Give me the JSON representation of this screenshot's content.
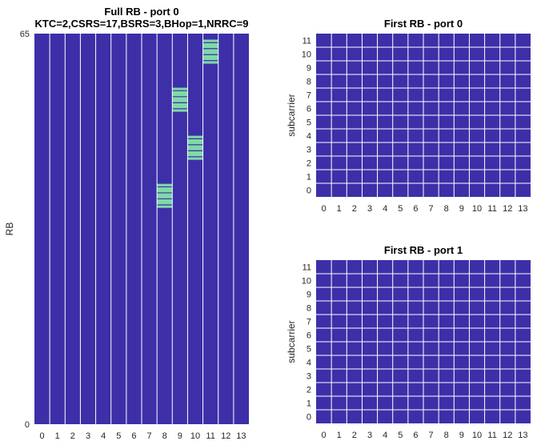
{
  "colors": {
    "background": "#3d2fa8",
    "highlight": "#7fd9a8",
    "gridline": "#ffffff"
  },
  "chart_data": [
    {
      "id": "full",
      "type": "heatmap",
      "title_lines": [
        "Full RB - port 0",
        "KTC=2,CSRS=17,BSRS=3,BHop=1,NRRC=9"
      ],
      "xlabel": "",
      "ylabel": "RB",
      "x_ticks": [
        "0",
        "1",
        "2",
        "3",
        "4",
        "5",
        "6",
        "7",
        "8",
        "9",
        "10",
        "11",
        "12",
        "13"
      ],
      "y_tick_labels": [
        "65",
        "0"
      ],
      "ylim": [
        0,
        65
      ],
      "symbols": 14,
      "grid": "vertical",
      "highlights": [
        {
          "symbol": 8,
          "rb_start": 36,
          "rb_end": 40
        },
        {
          "symbol": 9,
          "rb_start": 52,
          "rb_end": 56
        },
        {
          "symbol": 10,
          "rb_start": 44,
          "rb_end": 48
        },
        {
          "symbol": 11,
          "rb_start": 60,
          "rb_end": 64
        }
      ]
    },
    {
      "id": "port0",
      "type": "heatmap",
      "title_lines": [
        "First RB - port 0"
      ],
      "xlabel": "",
      "ylabel": "subcarrier",
      "x_ticks": [
        "0",
        "1",
        "2",
        "3",
        "4",
        "5",
        "6",
        "7",
        "8",
        "9",
        "10",
        "11",
        "12",
        "13"
      ],
      "y_ticks": [
        "0",
        "1",
        "2",
        "3",
        "4",
        "5",
        "6",
        "7",
        "8",
        "9",
        "10",
        "11"
      ],
      "grid": "both",
      "highlights": []
    },
    {
      "id": "port1",
      "type": "heatmap",
      "title_lines": [
        "First RB - port 1"
      ],
      "xlabel": "",
      "ylabel": "subcarrier",
      "x_ticks": [
        "0",
        "1",
        "2",
        "3",
        "4",
        "5",
        "6",
        "7",
        "8",
        "9",
        "10",
        "11",
        "12",
        "13"
      ],
      "y_ticks": [
        "0",
        "1",
        "2",
        "3",
        "4",
        "5",
        "6",
        "7",
        "8",
        "9",
        "10",
        "11"
      ],
      "grid": "both",
      "highlights": []
    }
  ]
}
